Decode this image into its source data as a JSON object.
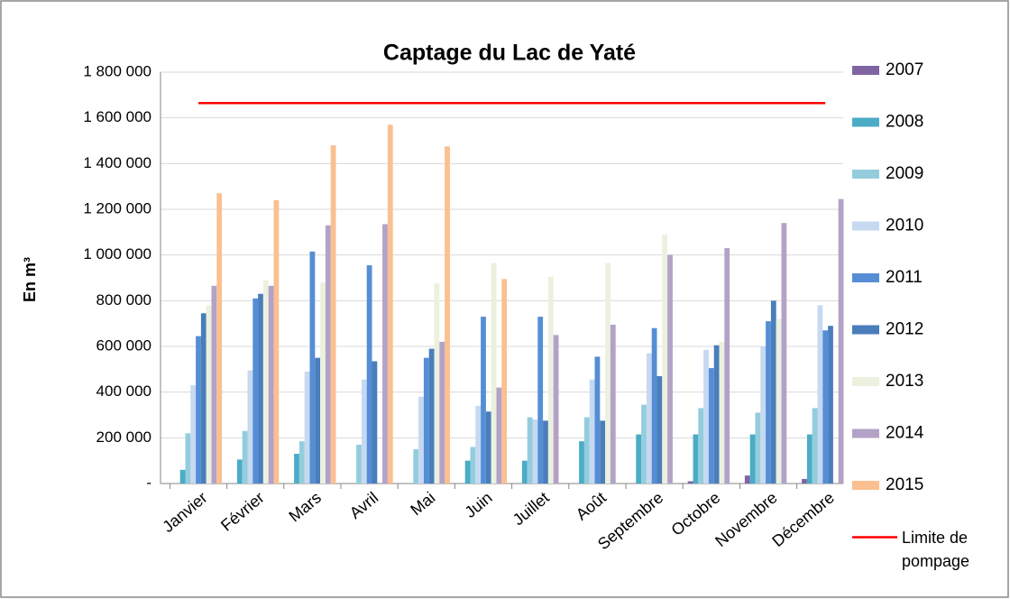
{
  "chart_data": {
    "type": "bar",
    "title": "Captage du Lac de Yaté",
    "y_label": "En m³",
    "categories": [
      "Janvier",
      "Février",
      "Mars",
      "Avril",
      "Mai",
      "Juin",
      "Juillet",
      "Août",
      "Septembre",
      "Octobre",
      "Novembre",
      "Décembre"
    ],
    "ylim": [
      0,
      1800000
    ],
    "yticks": [
      {
        "value": 0,
        "label": "-"
      },
      {
        "value": 200000,
        "label": "200 000"
      },
      {
        "value": 400000,
        "label": "400 000"
      },
      {
        "value": 600000,
        "label": "600 000"
      },
      {
        "value": 800000,
        "label": "800 000"
      },
      {
        "value": 1000000,
        "label": "1 000 000"
      },
      {
        "value": 1200000,
        "label": "1 200 000"
      },
      {
        "value": 1400000,
        "label": "1 400 000"
      },
      {
        "value": 1600000,
        "label": "1 600 000"
      },
      {
        "value": 1800000,
        "label": "1 800 000"
      }
    ],
    "grid": true,
    "legend": "right",
    "series": [
      {
        "name": "2007",
        "color": "#8064a2",
        "values": [
          null,
          null,
          null,
          null,
          null,
          null,
          null,
          null,
          null,
          10000,
          35000,
          20000
        ]
      },
      {
        "name": "2008",
        "color": "#4bacc6",
        "values": [
          60000,
          105000,
          130000,
          null,
          null,
          100000,
          100000,
          185000,
          215000,
          215000,
          215000,
          215000
        ]
      },
      {
        "name": "2009",
        "color": "#93cddd",
        "values": [
          220000,
          230000,
          185000,
          170000,
          150000,
          160000,
          290000,
          290000,
          345000,
          330000,
          310000,
          330000
        ]
      },
      {
        "name": "2010",
        "color": "#c6d9f1",
        "values": [
          430000,
          495000,
          490000,
          455000,
          380000,
          340000,
          280000,
          455000,
          570000,
          585000,
          600000,
          780000
        ]
      },
      {
        "name": "2011",
        "color": "#558ed5",
        "values": [
          645000,
          810000,
          1015000,
          955000,
          550000,
          730000,
          730000,
          555000,
          680000,
          505000,
          710000,
          670000
        ]
      },
      {
        "name": "2012",
        "color": "#4a7ebb",
        "values": [
          745000,
          830000,
          550000,
          535000,
          590000,
          315000,
          275000,
          275000,
          470000,
          605000,
          800000,
          690000
        ]
      },
      {
        "name": "2013",
        "color": "#ebf1de",
        "values": [
          780000,
          890000,
          880000,
          null,
          875000,
          965000,
          905000,
          965000,
          1090000,
          620000,
          720000,
          null
        ]
      },
      {
        "name": "2014",
        "color": "#b3a2c7",
        "values": [
          865000,
          865000,
          1130000,
          1135000,
          620000,
          420000,
          650000,
          695000,
          1000000,
          1030000,
          1140000,
          1245000
        ]
      },
      {
        "name": "2015",
        "color": "#fac090",
        "values": [
          1270000,
          1240000,
          1480000,
          1570000,
          1475000,
          895000,
          null,
          null,
          null,
          null,
          null,
          null
        ]
      },
      {
        "name": "Limite de pompage",
        "color": "#ff0000",
        "type": "line",
        "values": [
          1665000,
          1665000,
          1665000,
          1665000,
          1665000,
          1665000,
          1665000,
          1665000,
          1665000,
          1665000,
          1665000,
          1665000
        ]
      }
    ]
  }
}
